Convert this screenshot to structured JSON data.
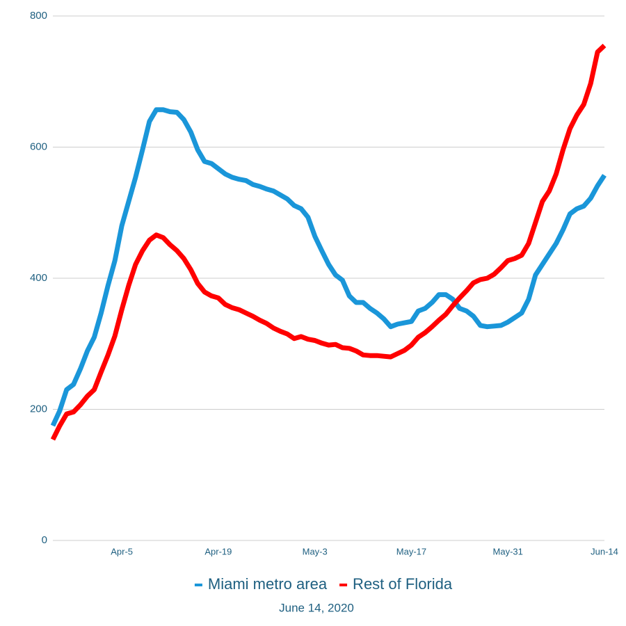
{
  "chart_data": {
    "type": "line",
    "subtitle": "June 14, 2020",
    "categories": [
      null,
      null,
      null,
      null,
      null,
      null,
      null,
      null,
      null,
      null,
      "Apr-5",
      null,
      null,
      null,
      null,
      null,
      null,
      null,
      null,
      null,
      null,
      null,
      null,
      null,
      "Apr-19",
      null,
      null,
      null,
      null,
      null,
      null,
      null,
      null,
      null,
      null,
      null,
      null,
      null,
      "May-3",
      null,
      null,
      null,
      null,
      null,
      null,
      null,
      null,
      null,
      null,
      null,
      null,
      null,
      "May-17",
      null,
      null,
      null,
      null,
      null,
      null,
      null,
      null,
      null,
      null,
      null,
      null,
      null,
      "May-31",
      null,
      null,
      null,
      null,
      null,
      null,
      null,
      null,
      null,
      null,
      null,
      null,
      null,
      "Jun-14"
    ],
    "series": [
      {
        "name": "Miami metro area",
        "color": "#1a96d9",
        "values": [
          175,
          198,
          230,
          238,
          262,
          289,
          310,
          347,
          389,
          427,
          480,
          517,
          554,
          596,
          639,
          657,
          657,
          654,
          653,
          642,
          623,
          596,
          578,
          575,
          567,
          559,
          554,
          551,
          549,
          543,
          540,
          536,
          533,
          527,
          521,
          511,
          506,
          493,
          464,
          442,
          421,
          405,
          397,
          373,
          363,
          363,
          354,
          347,
          338,
          326,
          330,
          332,
          334,
          350,
          354,
          363,
          375,
          375,
          368,
          354,
          350,
          342,
          328,
          326,
          327,
          328,
          333,
          340,
          347,
          368,
          405,
          421,
          437,
          453,
          474,
          498,
          506,
          510,
          522,
          541,
          557
        ]
      },
      {
        "name": "Rest of Florida",
        "color": "#ff0000",
        "values": [
          154,
          175,
          193,
          196,
          207,
          220,
          230,
          257,
          283,
          312,
          352,
          389,
          421,
          442,
          458,
          466,
          462,
          451,
          442,
          430,
          413,
          392,
          379,
          373,
          370,
          360,
          355,
          352,
          347,
          342,
          336,
          331,
          324,
          319,
          315,
          308,
          311,
          307,
          305,
          301,
          298,
          299,
          294,
          293,
          289,
          283,
          282,
          282,
          281,
          280,
          285,
          290,
          298,
          310,
          317,
          326,
          336,
          345,
          358,
          370,
          381,
          393,
          398,
          400,
          406,
          416,
          427,
          430,
          435,
          453,
          485,
          517,
          533,
          559,
          596,
          628,
          649,
          665,
          697,
          745,
          755
        ]
      }
    ],
    "ylim": [
      0,
      800
    ],
    "yticks": [
      0,
      200,
      400,
      600,
      800
    ],
    "grid": true,
    "legend": "bottom"
  }
}
